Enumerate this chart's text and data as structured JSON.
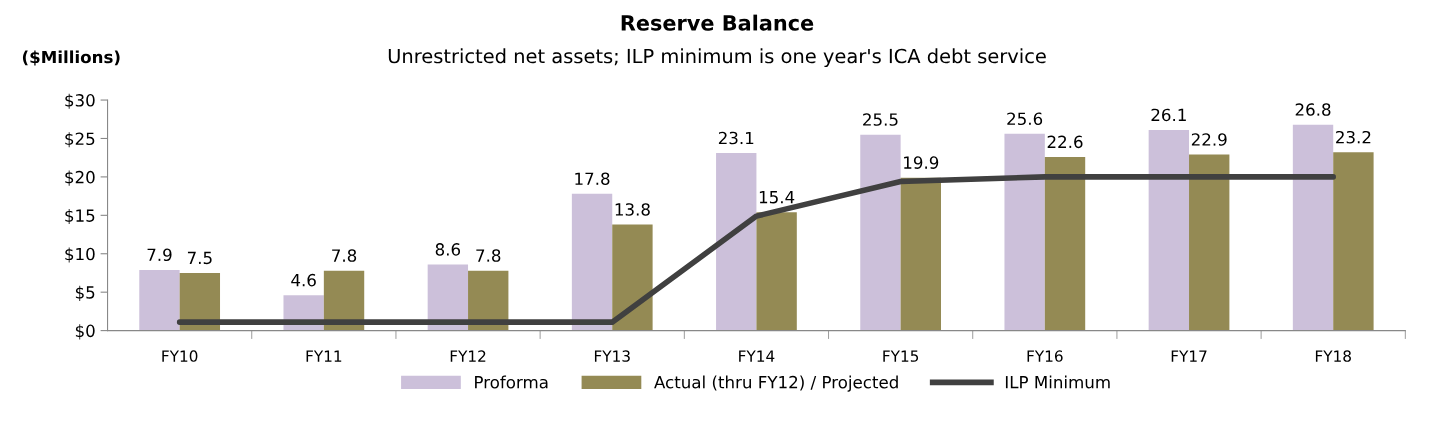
{
  "chart_data": {
    "type": "bar",
    "title": "Reserve Balance",
    "subtitle": "Unrestricted net assets; ILP minimum is one year's ICA debt service",
    "ylabel": "($Millions)",
    "categories": [
      "FY10",
      "FY11",
      "FY12",
      "FY13",
      "FY14",
      "FY15",
      "FY16",
      "FY17",
      "FY18"
    ],
    "series": [
      {
        "name": "Proforma",
        "color": "#ccc0da",
        "values": [
          7.9,
          4.6,
          8.6,
          17.8,
          23.1,
          25.5,
          25.6,
          26.1,
          26.8
        ],
        "value_labels": [
          "7.9",
          "4.6",
          "8.6",
          "17.8",
          "23.1",
          "25.5",
          "25.6",
          "26.1",
          "26.8"
        ]
      },
      {
        "name": "Actual (thru FY12) / Projected",
        "color": "#948a54",
        "values": [
          7.5,
          7.8,
          7.8,
          13.8,
          15.4,
          19.9,
          22.6,
          22.9,
          23.2
        ],
        "value_labels": [
          "7.5",
          "7.8",
          "7.8",
          "13.8",
          "15.4",
          "19.9",
          "22.6",
          "22.9",
          "23.2"
        ]
      },
      {
        "name": "ILP Minimum",
        "type": "line",
        "color": "#404040",
        "values": [
          1.1,
          1.1,
          1.1,
          1.1,
          14.9,
          19.4,
          20.0,
          20.0,
          20.0
        ]
      }
    ],
    "ylim": [
      0,
      30
    ],
    "yticks": [
      {
        "value": 0,
        "label": "$0"
      },
      {
        "value": 5,
        "label": "$5"
      },
      {
        "value": 10,
        "label": "$10"
      },
      {
        "value": 15,
        "label": "$15"
      },
      {
        "value": 20,
        "label": "$20"
      },
      {
        "value": 25,
        "label": "$25"
      },
      {
        "value": 30,
        "label": "$30"
      }
    ],
    "grid": false,
    "legend": "bottom",
    "marker": "none",
    "line_style": "solid"
  }
}
